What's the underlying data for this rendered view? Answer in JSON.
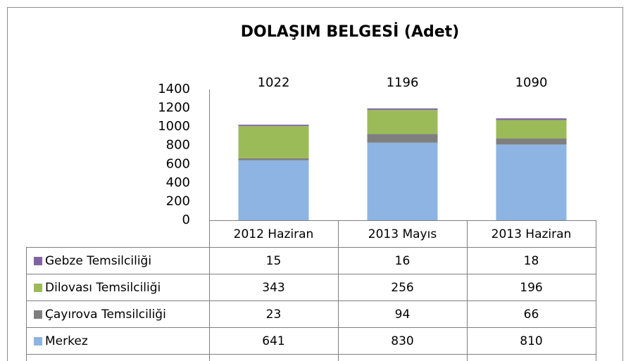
{
  "chart_data": {
    "type": "stacked-bar",
    "title": "DOLAŞIM BELGESİ (Adet)",
    "categories": [
      "2012 Haziran",
      "2013 Mayıs",
      "2013 Haziran"
    ],
    "series": [
      {
        "name": "Merkez",
        "color": "#8db4e2",
        "values": [
          641,
          830,
          810
        ]
      },
      {
        "name": "Çayırova Temsilciliği",
        "color": "#7f7f7f",
        "values": [
          23,
          94,
          66
        ]
      },
      {
        "name": "Dilovası Temsilciliği",
        "color": "#9bbb59",
        "values": [
          343,
          256,
          196
        ]
      },
      {
        "name": "Gebze Temsilciliği",
        "color": "#8064a2",
        "values": [
          15,
          16,
          18
        ]
      }
    ],
    "totals": [
      1022,
      1196,
      1090
    ],
    "ylim": [
      0,
      1400
    ],
    "yticks": [
      0,
      200,
      400,
      600,
      800,
      1000,
      1200,
      1400
    ]
  }
}
